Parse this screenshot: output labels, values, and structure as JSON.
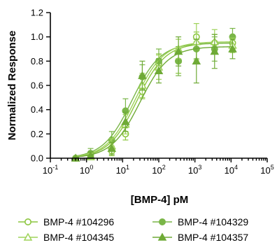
{
  "chart_data": {
    "type": "scatter",
    "xlabel": "[BMP-4] pM",
    "ylabel": "Normalized Response",
    "x_scale": "log10",
    "xlim": [
      0.1,
      100000
    ],
    "ylim": [
      0,
      1.2
    ],
    "x_ticks": [
      {
        "value": 0.1,
        "base": "10",
        "exp": "-1"
      },
      {
        "value": 1,
        "base": "10",
        "exp": "0"
      },
      {
        "value": 10,
        "base": "10",
        "exp": "1"
      },
      {
        "value": 100,
        "base": "10",
        "exp": "2"
      },
      {
        "value": 1000,
        "base": "10",
        "exp": "3"
      },
      {
        "value": 10000,
        "base": "10",
        "exp": "4"
      },
      {
        "value": 100000,
        "base": "10",
        "exp": "5"
      }
    ],
    "y_ticks": [
      "0.0",
      "0.2",
      "0.4",
      "0.6",
      "0.8",
      "1.0",
      "1.2"
    ],
    "legend_position": "bottom",
    "colors": {
      "c1": "#8cc63f",
      "c2": "#7ab648",
      "c3": "#9fd35a",
      "c4": "#6faa36"
    },
    "series": [
      {
        "name": "BMP-4 #104296",
        "marker": "circle-open",
        "color": "#8cc63f",
        "ec50": 25,
        "top": 0.95,
        "x": [
          0.5,
          1.3,
          5,
          12,
          35,
          100,
          350,
          1100,
          3500,
          11000
        ],
        "y": [
          0.0,
          0.02,
          0.06,
          0.2,
          0.55,
          0.78,
          0.8,
          1.0,
          0.95,
          0.95
        ],
        "err": [
          0.01,
          0.03,
          0.04,
          0.05,
          0.06,
          0.08,
          0.1,
          0.04,
          0.07,
          0.05
        ]
      },
      {
        "name": "BMP-4 #104329",
        "marker": "circle-filled",
        "color": "#7ab648",
        "ec50": 18,
        "top": 0.95,
        "x": [
          0.5,
          1.3,
          5,
          12,
          35,
          100,
          350,
          1100,
          3500,
          11000
        ],
        "y": [
          0.0,
          0.04,
          0.15,
          0.39,
          0.67,
          0.8,
          0.8,
          0.9,
          0.9,
          1.0
        ],
        "err": [
          0.01,
          0.04,
          0.07,
          0.1,
          0.1,
          0.1,
          0.12,
          0.08,
          0.1,
          0.07
        ]
      },
      {
        "name": "BMP-4 #104345",
        "marker": "triangle-open",
        "color": "#9fd35a",
        "ec50": 22,
        "top": 0.96,
        "x": [
          0.5,
          1.3,
          5,
          12,
          35,
          100,
          350,
          1100,
          3500,
          11000
        ],
        "y": [
          0.0,
          0.01,
          0.1,
          0.28,
          0.6,
          0.75,
          0.9,
          0.96,
          0.96,
          0.93
        ],
        "err": [
          0.01,
          0.03,
          0.06,
          0.08,
          0.1,
          0.1,
          0.08,
          0.15,
          0.1,
          0.06
        ]
      },
      {
        "name": "BMP-4 #104357",
        "marker": "triangle-filled",
        "color": "#6faa36",
        "ec50": 30,
        "top": 0.92,
        "x": [
          0.5,
          1.3,
          5,
          12,
          35,
          100,
          350,
          1100,
          3500,
          11000
        ],
        "y": [
          0.0,
          0.02,
          0.08,
          0.3,
          0.68,
          0.72,
          0.88,
          0.8,
          0.88,
          0.9
        ],
        "err": [
          0.01,
          0.03,
          0.05,
          0.08,
          0.12,
          0.1,
          0.12,
          0.18,
          0.14,
          0.08
        ]
      }
    ]
  }
}
